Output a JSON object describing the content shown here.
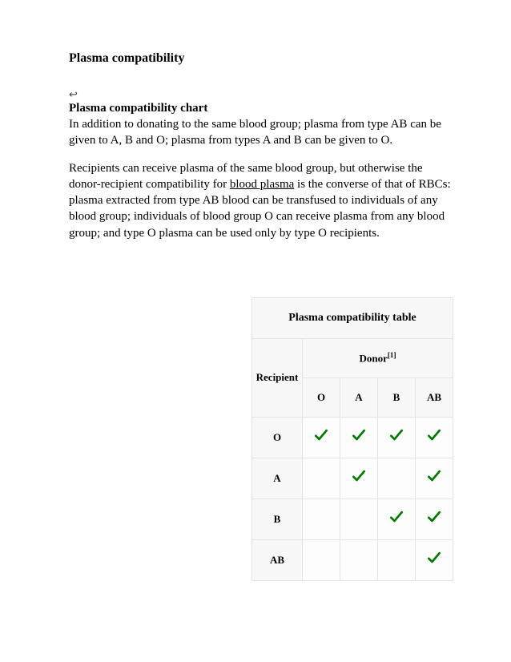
{
  "heading": "Plasma compatibility",
  "sub_icon": "↩",
  "subheading": "Plasma compatibility chart",
  "para1": "In addition to donating to the same blood group; plasma from type AB can be given to A, B and O; plasma from types A and B can be given to O.",
  "para2_pre": "Recipients can receive plasma of the same blood group, but otherwise the donor-recipient compatibility for ",
  "para2_link": "blood plasma",
  "para2_post": " is the converse of that of RBCs: plasma extracted from type AB blood can be transfused to individuals of any blood group; individuals of blood group O can receive plasma from any blood group; and type O plasma can be used only by type O recipients.",
  "table": {
    "title": "Plasma compatibility table",
    "recipient_label": "Recipient",
    "donor_label": "Donor",
    "donor_sup": "[1]",
    "donor_cols": [
      "O",
      "A",
      "B",
      "AB"
    ],
    "rows": [
      {
        "label": "O",
        "cells": [
          true,
          true,
          true,
          true
        ]
      },
      {
        "label": "A",
        "cells": [
          false,
          true,
          false,
          true
        ]
      },
      {
        "label": "B",
        "cells": [
          false,
          false,
          true,
          true
        ]
      },
      {
        "label": "AB",
        "cells": [
          false,
          false,
          false,
          true
        ]
      }
    ],
    "check_color": "#007a00",
    "border_color": "#e4e4e4",
    "header_bg": "#f7f7f7"
  }
}
